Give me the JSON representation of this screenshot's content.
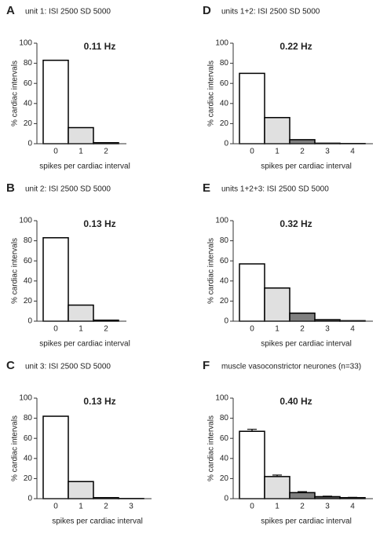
{
  "chart_data": [
    {
      "type": "bar",
      "panel_label": "A",
      "title": "unit 1: ISI 2500 SD 5000",
      "annotation": "0.11 Hz",
      "ylabel": "% cardiac intervals",
      "xlabel": "spikes per cardiac interval",
      "categories": [
        "0",
        "1",
        "2"
      ],
      "values": [
        83,
        16,
        1
      ],
      "colors": [
        "#ffffff",
        "#e0e0e0",
        "#7f7f7f"
      ],
      "ylim": [
        0,
        100
      ],
      "yticks": [
        0,
        20,
        40,
        60,
        80,
        100
      ]
    },
    {
      "type": "bar",
      "panel_label": "B",
      "title": "unit 2: ISI 2500 SD 5000",
      "annotation": "0.13 Hz",
      "ylabel": "% cardiac intervals",
      "xlabel": "spikes per cardiac interval",
      "categories": [
        "0",
        "1",
        "2"
      ],
      "values": [
        83,
        16,
        1
      ],
      "colors": [
        "#ffffff",
        "#e0e0e0",
        "#7f7f7f"
      ],
      "ylim": [
        0,
        100
      ],
      "yticks": [
        0,
        20,
        40,
        60,
        80,
        100
      ]
    },
    {
      "type": "bar",
      "panel_label": "C",
      "title": "unit 3:  ISI 2500 SD 5000",
      "annotation": "0.13 Hz",
      "ylabel": "% cardiac intervals",
      "xlabel": "spikes per cardiac interval",
      "categories": [
        "0",
        "1",
        "2",
        "3"
      ],
      "values": [
        82,
        17,
        1,
        0.2
      ],
      "colors": [
        "#ffffff",
        "#e0e0e0",
        "#7f7f7f",
        "#5a5a5a"
      ],
      "ylim": [
        0,
        100
      ],
      "yticks": [
        0,
        20,
        40,
        60,
        80,
        100
      ]
    },
    {
      "type": "bar",
      "panel_label": "D",
      "title": "units 1+2: ISI 2500 SD 5000",
      "annotation": "0.22 Hz",
      "ylabel": "% cardiac intervals",
      "xlabel": "spikes per cardiac interval",
      "categories": [
        "0",
        "1",
        "2",
        "3",
        "4"
      ],
      "values": [
        70,
        26,
        4,
        0.5,
        0.2
      ],
      "colors": [
        "#ffffff",
        "#e0e0e0",
        "#7f7f7f",
        "#5a5a5a",
        "#5a5a5a"
      ],
      "ylim": [
        0,
        100
      ],
      "yticks": [
        0,
        20,
        40,
        60,
        80,
        100
      ]
    },
    {
      "type": "bar",
      "panel_label": "E",
      "title": "units 1+2+3: ISI 2500 SD 5000",
      "annotation": "0.32 Hz",
      "ylabel": "% cardiac intervals",
      "xlabel": "spikes per cardiac interval",
      "categories": [
        "0",
        "1",
        "2",
        "3",
        "4"
      ],
      "values": [
        57,
        33,
        8,
        1.5,
        0.5
      ],
      "colors": [
        "#ffffff",
        "#e0e0e0",
        "#7f7f7f",
        "#5a5a5a",
        "#5a5a5a"
      ],
      "ylim": [
        0,
        100
      ],
      "yticks": [
        0,
        20,
        40,
        60,
        80,
        100
      ]
    },
    {
      "type": "bar",
      "panel_label": "F",
      "title": "muscle vasoconstrictor neurones (n=33)",
      "annotation": "0.40 Hz",
      "ylabel": "% cardiac intervals",
      "xlabel": "spikes per cardiac interval",
      "categories": [
        "0",
        "1",
        "2",
        "3",
        "4"
      ],
      "values": [
        67,
        22,
        6,
        2,
        1
      ],
      "errors": [
        2,
        1.5,
        1,
        0.5,
        0.3
      ],
      "colors": [
        "#ffffff",
        "#e0e0e0",
        "#7f7f7f",
        "#5a5a5a",
        "#5a5a5a"
      ],
      "ylim": [
        0,
        100
      ],
      "yticks": [
        0,
        20,
        40,
        60,
        80,
        100
      ]
    }
  ]
}
